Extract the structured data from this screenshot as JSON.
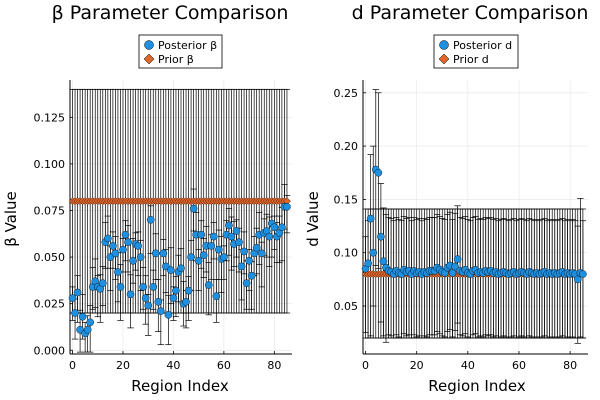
{
  "colors": {
    "posterior": "#1f8fe0",
    "prior": "#e0662b",
    "grid": "#e6e6e6",
    "errorbar": "#000000"
  },
  "chart_data": [
    {
      "type": "scatter",
      "title": "β Parameter Comparison",
      "xlabel": "Region Index",
      "ylabel": "β Value",
      "xlim": [
        -1,
        87
      ],
      "ylim": [
        -0.002,
        0.145
      ],
      "xticks": [
        0,
        20,
        40,
        60,
        80
      ],
      "yticks": [
        0.0,
        0.025,
        0.05,
        0.075,
        0.1,
        0.125
      ],
      "ytick_labels": [
        "0.000",
        "0.025",
        "0.050",
        "0.075",
        "0.100",
        "0.125"
      ],
      "grid": true,
      "legend": "top-center",
      "series": [
        {
          "name": "Posterior β",
          "marker": "circle",
          "x": [
            0,
            1,
            2,
            3,
            4,
            5,
            6,
            7,
            8,
            9,
            10,
            11,
            12,
            13,
            14,
            15,
            16,
            17,
            18,
            19,
            20,
            21,
            22,
            23,
            24,
            25,
            26,
            27,
            28,
            29,
            30,
            31,
            32,
            33,
            34,
            35,
            36,
            37,
            38,
            39,
            40,
            41,
            42,
            43,
            44,
            45,
            46,
            47,
            48,
            49,
            50,
            51,
            52,
            53,
            54,
            55,
            56,
            57,
            58,
            59,
            60,
            61,
            62,
            63,
            64,
            65,
            66,
            67,
            68,
            69,
            70,
            71,
            72,
            73,
            74,
            75,
            76,
            77,
            78,
            79,
            80,
            81,
            82,
            83,
            84,
            85
          ],
          "y": [
            0.028,
            0.02,
            0.031,
            0.011,
            0.018,
            0.009,
            0.011,
            0.015,
            0.034,
            0.037,
            0.034,
            0.033,
            0.036,
            0.058,
            0.06,
            0.05,
            0.056,
            0.052,
            0.042,
            0.034,
            0.054,
            0.062,
            0.058,
            0.03,
            0.048,
            0.057,
            0.056,
            0.05,
            0.034,
            0.028,
            0.024,
            0.07,
            0.034,
            0.052,
            0.026,
            0.021,
            0.052,
            0.045,
            0.019,
            0.043,
            0.028,
            0.032,
            0.042,
            0.044,
            0.025,
            0.026,
            0.032,
            0.05,
            0.076,
            0.062,
            0.048,
            0.062,
            0.051,
            0.056,
            0.035,
            0.056,
            0.061,
            0.029,
            0.054,
            0.049,
            0.05,
            0.062,
            0.067,
            0.061,
            0.057,
            0.064,
            0.058,
            0.045,
            0.053,
            0.036,
            0.048,
            0.04,
            0.052,
            0.055,
            0.062,
            0.052,
            0.063,
            0.064,
            0.061,
            0.068,
            0.066,
            0.061,
            0.063,
            0.066,
            0.077,
            0.077
          ]
        },
        {
          "name": "Prior β",
          "marker": "diamond",
          "constant": 0.08,
          "lower": 0.02,
          "upper": 0.14
        }
      ]
    },
    {
      "type": "scatter",
      "title": "d Parameter Comparison",
      "xlabel": "Region Index",
      "ylabel": "d Value",
      "xlim": [
        -1,
        87
      ],
      "ylim": [
        0.005,
        0.262
      ],
      "xticks": [
        0,
        20,
        40,
        60,
        80
      ],
      "yticks": [
        0.05,
        0.1,
        0.15,
        0.2,
        0.25
      ],
      "ytick_labels": [
        "0.05",
        "0.10",
        "0.15",
        "0.20",
        "0.25"
      ],
      "grid": true,
      "legend": "top-center",
      "series": [
        {
          "name": "Posterior d",
          "marker": "circle",
          "x": [
            0,
            1,
            2,
            3,
            4,
            5,
            6,
            7,
            8,
            9,
            10,
            11,
            12,
            13,
            14,
            15,
            16,
            17,
            18,
            19,
            20,
            21,
            22,
            23,
            24,
            25,
            26,
            27,
            28,
            29,
            30,
            31,
            32,
            33,
            34,
            35,
            36,
            37,
            38,
            39,
            40,
            41,
            42,
            43,
            44,
            45,
            46,
            47,
            48,
            49,
            50,
            51,
            52,
            53,
            54,
            55,
            56,
            57,
            58,
            59,
            60,
            61,
            62,
            63,
            64,
            65,
            66,
            67,
            68,
            69,
            70,
            71,
            72,
            73,
            74,
            75,
            76,
            77,
            78,
            79,
            80,
            81,
            82,
            83,
            84,
            85
          ],
          "y": [
            0.085,
            0.09,
            0.132,
            0.1,
            0.178,
            0.175,
            0.115,
            0.092,
            0.086,
            0.083,
            0.082,
            0.08,
            0.083,
            0.081,
            0.08,
            0.084,
            0.082,
            0.083,
            0.08,
            0.083,
            0.081,
            0.082,
            0.08,
            0.082,
            0.081,
            0.083,
            0.083,
            0.083,
            0.086,
            0.084,
            0.082,
            0.081,
            0.086,
            0.088,
            0.081,
            0.087,
            0.094,
            0.083,
            0.082,
            0.084,
            0.081,
            0.08,
            0.083,
            0.084,
            0.081,
            0.082,
            0.081,
            0.083,
            0.082,
            0.083,
            0.081,
            0.082,
            0.08,
            0.081,
            0.082,
            0.081,
            0.08,
            0.081,
            0.082,
            0.08,
            0.081,
            0.082,
            0.081,
            0.08,
            0.082,
            0.081,
            0.08,
            0.081,
            0.08,
            0.081,
            0.082,
            0.08,
            0.081,
            0.08,
            0.081,
            0.08,
            0.081,
            0.082,
            0.08,
            0.081,
            0.08,
            0.081,
            0.08,
            0.075,
            0.081,
            0.08
          ],
          "err_high": [
            0.03,
            0.04,
            0.06,
            0.1,
            0.075,
            0.075,
            0.05,
            0.05,
            0.05,
            0.05,
            0.05,
            0.05,
            0.05,
            0.05,
            0.05,
            0.05,
            0.05,
            0.05,
            0.05,
            0.05,
            0.05,
            0.05,
            0.05,
            0.05,
            0.05,
            0.05,
            0.05,
            0.05,
            0.05,
            0.05,
            0.05,
            0.05,
            0.05,
            0.05,
            0.05,
            0.05,
            0.05,
            0.05,
            0.05,
            0.05,
            0.05,
            0.05,
            0.05,
            0.05,
            0.05,
            0.05,
            0.05,
            0.05,
            0.05,
            0.05,
            0.05,
            0.05,
            0.05,
            0.05,
            0.05,
            0.05,
            0.05,
            0.05,
            0.05,
            0.05,
            0.05,
            0.05,
            0.05,
            0.05,
            0.05,
            0.05,
            0.05,
            0.05,
            0.05,
            0.05,
            0.05,
            0.05,
            0.05,
            0.05,
            0.05,
            0.05,
            0.05,
            0.05,
            0.05,
            0.05,
            0.05,
            0.05,
            0.05,
            0.05,
            0.07,
            0.05
          ],
          "err_low": [
            0.06,
            0.07,
            0.11,
            0.05,
            0.09,
            0.09,
            0.08,
            0.07,
            0.07,
            0.06,
            0.06,
            0.06,
            0.06,
            0.06,
            0.06,
            0.06,
            0.06,
            0.06,
            0.06,
            0.06,
            0.06,
            0.06,
            0.06,
            0.06,
            0.06,
            0.06,
            0.06,
            0.06,
            0.06,
            0.06,
            0.06,
            0.06,
            0.06,
            0.06,
            0.06,
            0.06,
            0.06,
            0.06,
            0.06,
            0.06,
            0.06,
            0.06,
            0.06,
            0.06,
            0.06,
            0.06,
            0.06,
            0.06,
            0.06,
            0.06,
            0.06,
            0.06,
            0.06,
            0.06,
            0.06,
            0.06,
            0.06,
            0.06,
            0.06,
            0.06,
            0.06,
            0.06,
            0.06,
            0.06,
            0.06,
            0.06,
            0.06,
            0.06,
            0.06,
            0.06,
            0.06,
            0.06,
            0.06,
            0.06,
            0.06,
            0.06,
            0.06,
            0.06,
            0.06,
            0.06,
            0.06,
            0.06,
            0.06,
            0.06,
            0.06,
            0.06
          ]
        },
        {
          "name": "Prior d",
          "marker": "diamond",
          "constant": 0.08,
          "lower": 0.02,
          "upper": 0.141
        }
      ]
    }
  ]
}
